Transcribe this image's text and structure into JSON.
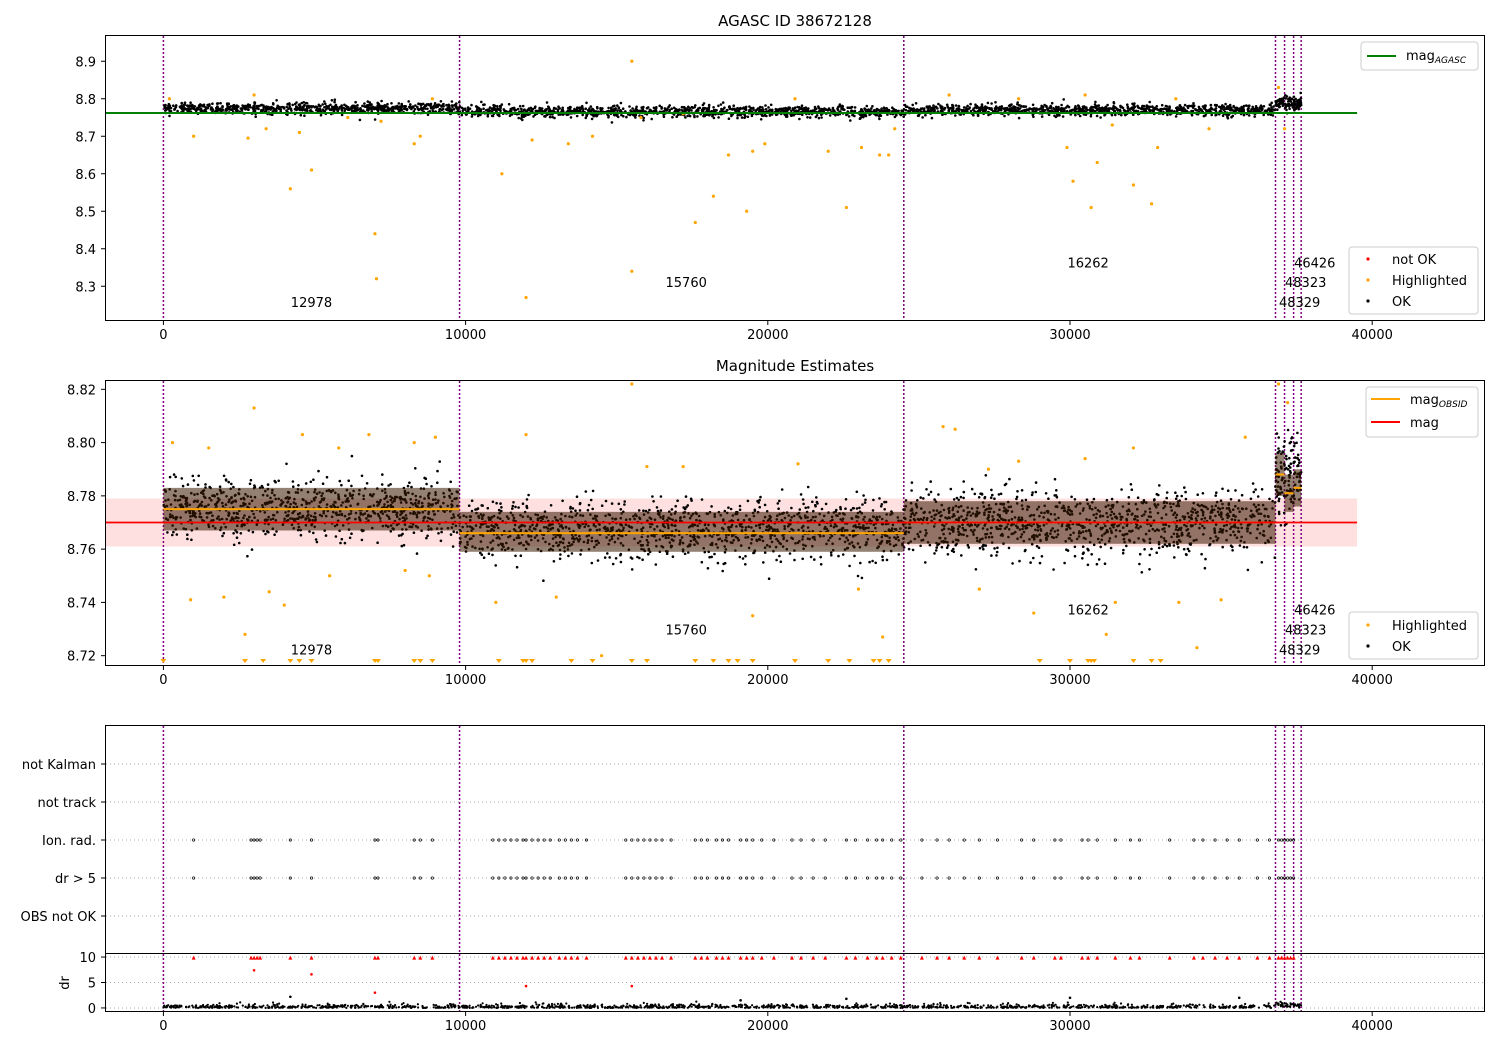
{
  "chart_data": [
    {
      "type": "scatter",
      "title": "AGASC ID 38672128",
      "xlim": [
        -1900,
        43700
      ],
      "ylim": [
        8.21,
        8.97
      ],
      "x_ticks": [
        0,
        10000,
        20000,
        30000,
        40000
      ],
      "y_ticks": [
        8.3,
        8.4,
        8.5,
        8.6,
        8.7,
        8.8,
        8.9
      ],
      "obs_boundaries": [
        0,
        9800,
        24500,
        36800,
        37100,
        37400,
        37650
      ],
      "obsid_labels": [
        {
          "text": "12978",
          "x": 4900,
          "y": 8.245
        },
        {
          "text": "15760",
          "x": 17300,
          "y": 8.298
        },
        {
          "text": "16262",
          "x": 30600,
          "y": 8.35
        },
        {
          "text": "46426",
          "x": 38100,
          "y": 8.35
        },
        {
          "text": "48323",
          "x": 37800,
          "y": 8.298
        },
        {
          "text": "48329",
          "x": 37600,
          "y": 8.245
        }
      ],
      "reference_lines": [
        {
          "name": "mag_AGASC",
          "y": 8.762,
          "x_range": [
            -1900,
            39500
          ],
          "color": "#008000"
        }
      ],
      "series": [
        {
          "name": "not OK",
          "color": "#ff0000",
          "points": []
        },
        {
          "name": "Highlighted",
          "color": "#ffa500",
          "points": [
            [
              200,
              8.8
            ],
            [
              1000,
              8.7
            ],
            [
              2800,
              8.695
            ],
            [
              3000,
              8.81
            ],
            [
              3400,
              8.72
            ],
            [
              4200,
              8.56
            ],
            [
              4500,
              8.71
            ],
            [
              4900,
              8.61
            ],
            [
              6100,
              8.75
            ],
            [
              7000,
              8.44
            ],
            [
              7050,
              8.32
            ],
            [
              7200,
              8.74
            ],
            [
              8300,
              8.68
            ],
            [
              8500,
              8.7
            ],
            [
              8900,
              8.8
            ],
            [
              11200,
              8.6
            ],
            [
              12000,
              8.27
            ],
            [
              12200,
              8.69
            ],
            [
              13400,
              8.68
            ],
            [
              14200,
              8.7
            ],
            [
              15500,
              8.9
            ],
            [
              15500,
              8.34
            ],
            [
              15800,
              8.75
            ],
            [
              17200,
              8.76
            ],
            [
              17600,
              8.47
            ],
            [
              18200,
              8.54
            ],
            [
              18700,
              8.65
            ],
            [
              19300,
              8.5
            ],
            [
              19500,
              8.66
            ],
            [
              19900,
              8.68
            ],
            [
              20900,
              8.8
            ],
            [
              22000,
              8.66
            ],
            [
              22600,
              8.51
            ],
            [
              23100,
              8.67
            ],
            [
              23700,
              8.65
            ],
            [
              24000,
              8.65
            ],
            [
              24200,
              8.72
            ],
            [
              26000,
              8.81
            ],
            [
              28300,
              8.8
            ],
            [
              29900,
              8.67
            ],
            [
              30100,
              8.58
            ],
            [
              30500,
              8.81
            ],
            [
              30700,
              8.51
            ],
            [
              30900,
              8.63
            ],
            [
              31400,
              8.73
            ],
            [
              32100,
              8.57
            ],
            [
              32700,
              8.52
            ],
            [
              32900,
              8.67
            ],
            [
              33500,
              8.8
            ],
            [
              34600,
              8.72
            ],
            [
              36900,
              8.83
            ],
            [
              37100,
              8.72
            ]
          ]
        },
        {
          "name": "OK",
          "color": "#000000",
          "bands": [
            {
              "x": [
                0,
                9800
              ],
              "center": 8.775,
              "spread": 0.015
            },
            {
              "x": [
                9800,
                24500
              ],
              "center": 8.766,
              "spread": 0.015
            },
            {
              "x": [
                24500,
                36800
              ],
              "center": 8.77,
              "spread": 0.015
            },
            {
              "x": [
                36800,
                37650
              ],
              "center": 8.788,
              "spread": 0.02
            }
          ]
        }
      ],
      "legend": [
        "mag_AGASC"
      ],
      "legend_upper": {
        "main": "mag",
        "sub": "AGASC"
      },
      "legend_lower": [
        "not OK",
        "Highlighted",
        "OK"
      ],
      "legend_placement": "upper-right / lower-right",
      "grid": false
    },
    {
      "type": "scatter",
      "title": "Magnitude Estimates",
      "xlim": [
        -1900,
        43700
      ],
      "ylim": [
        8.7165,
        8.8235
      ],
      "x_ticks": [
        0,
        10000,
        20000,
        30000,
        40000
      ],
      "y_ticks": [
        8.72,
        8.74,
        8.76,
        8.78,
        8.8,
        8.82
      ],
      "obs_boundaries": [
        0,
        9800,
        24500,
        36800,
        37100,
        37400,
        37650
      ],
      "obsid_labels": [
        {
          "text": "12978",
          "x": 4900,
          "y": 8.7205
        },
        {
          "text": "15760",
          "x": 17300,
          "y": 8.728
        },
        {
          "text": "16262",
          "x": 30600,
          "y": 8.7355
        },
        {
          "text": "46426",
          "x": 38100,
          "y": 8.7355
        },
        {
          "text": "48323",
          "x": 37800,
          "y": 8.728
        },
        {
          "text": "48329",
          "x": 37600,
          "y": 8.7205
        }
      ],
      "mag": 8.77,
      "mag_band": [
        8.761,
        8.779
      ],
      "obsid_mags": [
        {
          "x": [
            0,
            9800
          ],
          "mag": 8.775,
          "band": [
            8.767,
            8.783
          ]
        },
        {
          "x": [
            9800,
            24500
          ],
          "mag": 8.766,
          "band": [
            8.759,
            8.774
          ]
        },
        {
          "x": [
            24500,
            36800
          ],
          "mag": 8.77,
          "band": [
            8.762,
            8.778
          ]
        },
        {
          "x": [
            36800,
            37100
          ],
          "mag": 8.788,
          "band": [
            8.78,
            8.796
          ]
        },
        {
          "x": [
            37100,
            37400
          ],
          "mag": 8.781,
          "band": [
            8.774,
            8.788
          ]
        },
        {
          "x": [
            37400,
            37650
          ],
          "mag": 8.783,
          "band": [
            8.776,
            8.79
          ]
        }
      ],
      "series": [
        {
          "name": "Highlighted",
          "color": "#ffa500",
          "points": [
            [
              300,
              8.8
            ],
            [
              1500,
              8.798
            ],
            [
              3000,
              8.813
            ],
            [
              4600,
              8.803
            ],
            [
              5800,
              8.798
            ],
            [
              6800,
              8.803
            ],
            [
              8300,
              8.8
            ],
            [
              9000,
              8.802
            ],
            [
              900,
              8.741
            ],
            [
              2000,
              8.742
            ],
            [
              3500,
              8.744
            ],
            [
              4000,
              8.739
            ],
            [
              5500,
              8.75
            ],
            [
              8000,
              8.752
            ],
            [
              8800,
              8.75
            ],
            [
              11000,
              8.74
            ],
            [
              12000,
              8.803
            ],
            [
              13000,
              8.742
            ],
            [
              15500,
              8.822
            ],
            [
              16000,
              8.791
            ],
            [
              17200,
              8.791
            ],
            [
              19500,
              8.735
            ],
            [
              21000,
              8.792
            ],
            [
              23000,
              8.745
            ],
            [
              23800,
              8.727
            ],
            [
              25800,
              8.806
            ],
            [
              26200,
              8.805
            ],
            [
              27300,
              8.79
            ],
            [
              28300,
              8.793
            ],
            [
              28800,
              8.736
            ],
            [
              30500,
              8.794
            ],
            [
              31200,
              8.728
            ],
            [
              32100,
              8.798
            ],
            [
              34200,
              8.723
            ],
            [
              35000,
              8.741
            ],
            [
              35800,
              8.802
            ],
            [
              36900,
              8.822
            ],
            [
              37200,
              8.815
            ],
            [
              2700,
              8.728
            ],
            [
              14500,
              8.72
            ],
            [
              27000,
              8.745
            ],
            [
              33600,
              8.74
            ],
            [
              31500,
              8.74
            ]
          ]
        },
        {
          "name": "OK",
          "color": "#000000",
          "bands": [
            {
              "x": [
                0,
                9800
              ],
              "center": 8.775,
              "spread": 0.011
            },
            {
              "x": [
                9800,
                24500
              ],
              "center": 8.767,
              "spread": 0.011
            },
            {
              "x": [
                24500,
                36800
              ],
              "center": 8.77,
              "spread": 0.012
            },
            {
              "x": [
                36800,
                37650
              ],
              "center": 8.788,
              "spread": 0.014
            }
          ]
        }
      ],
      "lower_markers_x": [
        0,
        2700,
        3300,
        4200,
        4500,
        4900,
        7000,
        7100,
        8300,
        8500,
        8900,
        11100,
        11900,
        12000,
        12200,
        13500,
        14200,
        15500,
        16000,
        17600,
        18200,
        18700,
        19000,
        19500,
        20900,
        22000,
        22700,
        23500,
        23700,
        24000,
        29000,
        30000,
        30600,
        30700,
        30800,
        32100,
        32700,
        33000
      ],
      "legend_upper": [
        {
          "main": "mag",
          "sub": "OBSID"
        },
        "mag"
      ],
      "legend_lower": [
        "Highlighted",
        "OK"
      ],
      "grid": false
    },
    {
      "type": "scatter",
      "title": "",
      "xlim": [
        -1900,
        43700
      ],
      "categories": [
        "not Kalman",
        "not track",
        "Ion. rad.",
        "dr > 5",
        "OBS not OK"
      ],
      "flag_x": [
        1000,
        2900,
        3000,
        3100,
        3200,
        4200,
        4900,
        7000,
        7100,
        8300,
        8500,
        8900,
        10900,
        11100,
        11300,
        11500,
        11700,
        11900,
        12000,
        12200,
        12400,
        12600,
        12800,
        13100,
        13300,
        13500,
        13700,
        14000,
        15300,
        15500,
        15700,
        15900,
        16100,
        16300,
        16500,
        16800,
        17600,
        17800,
        18000,
        18300,
        18500,
        18700,
        19100,
        19300,
        19500,
        19800,
        20200,
        20800,
        21100,
        21500,
        21900,
        22600,
        22900,
        23300,
        23600,
        23800,
        24100,
        24400,
        25100,
        25600,
        26000,
        26500,
        27000,
        27600,
        28400,
        28800,
        29500,
        29700,
        30400,
        30600,
        30900,
        31500,
        32000,
        32300,
        33300,
        34100,
        34400,
        34800,
        35200,
        35600,
        36200,
        36600,
        36900,
        37000,
        37100,
        37200,
        37300,
        37400
      ],
      "flag_rows": [
        "Ion. rad.",
        "dr > 5"
      ],
      "dr": {
        "ylabel": "dr",
        "y_ticks": [
          0,
          5,
          10
        ],
        "ylim": [
          -0.6,
          10.6
        ],
        "points_high": 9.9,
        "scattered_points": [
          [
            3000,
            7.4
          ],
          [
            4900,
            6.6
          ],
          [
            7000,
            3.0
          ],
          [
            12000,
            4.3
          ],
          [
            15500,
            4.3
          ],
          [
            4200,
            2.2
          ],
          [
            19100,
            1.5
          ],
          [
            22600,
            1.8
          ],
          [
            30000,
            2.0
          ],
          [
            35600,
            2.0
          ]
        ]
      },
      "grid": "horizontal-dotted"
    }
  ]
}
